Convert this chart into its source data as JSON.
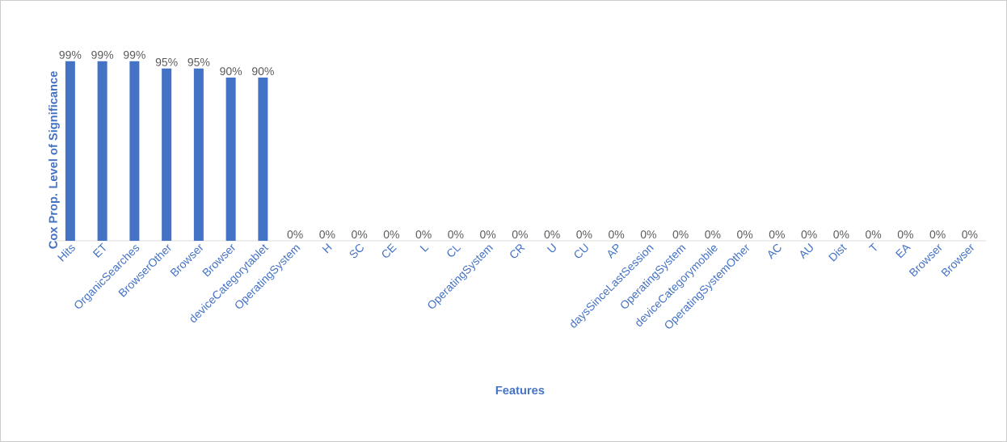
{
  "chart_data": {
    "type": "bar",
    "ylabel": "Cox Prop. Level of Significance",
    "xlabel": "Features",
    "categories": [
      "Hits",
      "ET",
      "OrganicSearches",
      "BrowserOther",
      "Browser",
      "Browser",
      "deviceCategorytablet",
      "OperatingSystem",
      "H",
      "SC",
      "CE",
      "L",
      "CL",
      "OperatingSystem",
      "CR",
      "U",
      "CU",
      "AP",
      "daysSinceLastSession",
      "OperatingSystem",
      "deviceCategorymobile",
      "OperatingSystemOther",
      "AC",
      "AU",
      "Dist",
      "T",
      "EA",
      "Browser",
      "Browser"
    ],
    "values": [
      99,
      99,
      99,
      95,
      95,
      90,
      90,
      0,
      0,
      0,
      0,
      0,
      0,
      0,
      0,
      0,
      0,
      0,
      0,
      0,
      0,
      0,
      0,
      0,
      0,
      0,
      0,
      0,
      0
    ],
    "value_labels": [
      "99%",
      "99%",
      "99%",
      "95%",
      "95%",
      "90%",
      "90%",
      "0%",
      "0%",
      "0%",
      "0%",
      "0%",
      "0%",
      "0%",
      "0%",
      "0%",
      "0%",
      "0%",
      "0%",
      "0%",
      "0%",
      "0%",
      "0%",
      "0%",
      "0%",
      "0%",
      "0%",
      "0%",
      "0%"
    ],
    "color": "#4472c4"
  }
}
